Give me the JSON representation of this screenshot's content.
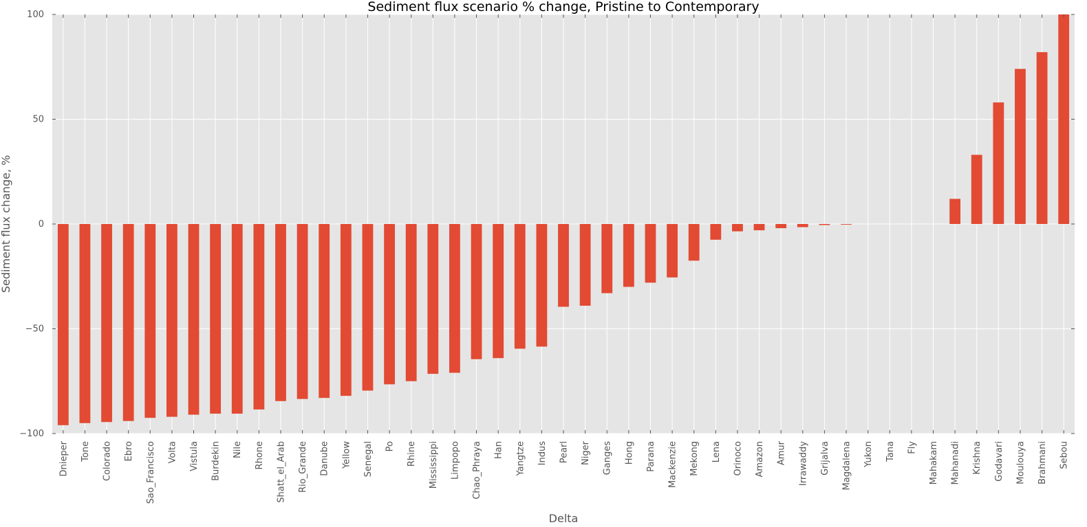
{
  "chart_data": {
    "type": "bar",
    "title": "Sediment flux scenario % change, Pristine to Contemporary",
    "xlabel": "Delta",
    "ylabel": "Sediment flux change, %",
    "ylim": [
      -100,
      100
    ],
    "yticks": [
      -100,
      -50,
      0,
      50,
      100
    ],
    "ytick_labels": [
      "−100",
      "−50",
      "0",
      "50",
      "100"
    ],
    "grid": true,
    "colors": {
      "bar": "#e24a33",
      "background": "#e5e5e5",
      "grid": "#ffffff"
    },
    "categories": [
      "Dnieper",
      "Tone",
      "Colorado",
      "Ebro",
      "Sao_Francisco",
      "Volta",
      "Vistula",
      "Burdekin",
      "Nile",
      "Rhone",
      "Shatt_el_Arab",
      "Rio_Grande",
      "Danube",
      "Yellow",
      "Senegal",
      "Po",
      "Rhine",
      "Mississippi",
      "Limpopo",
      "Chao_Phraya",
      "Han",
      "Yangtze",
      "Indus",
      "Pearl",
      "Niger",
      "Ganges",
      "Hong",
      "Parana",
      "Mackenzie",
      "Mekong",
      "Lena",
      "Orinoco",
      "Amazon",
      "Amur",
      "Irrawaddy",
      "Grijalva",
      "Magdalena",
      "Yukon",
      "Tana",
      "Fly",
      "Mahakam",
      "Mahanadi",
      "Krishna",
      "Godavari",
      "Moulouya",
      "Brahmani",
      "Sebou"
    ],
    "values": [
      -96,
      -95,
      -94.5,
      -94,
      -92.5,
      -92,
      -91,
      -90.5,
      -90.5,
      -88.5,
      -84.5,
      -83.5,
      -83,
      -82,
      -79.5,
      -76.5,
      -75,
      -71.5,
      -71,
      -64.5,
      -64,
      -59.5,
      -58.5,
      -39.5,
      -39,
      -33,
      -30,
      -28,
      -25.5,
      -17.5,
      -7.5,
      -3.5,
      -3,
      -2,
      -1.5,
      -0.5,
      -0.3,
      0,
      0,
      0,
      0,
      12,
      33,
      58,
      74,
      82,
      100
    ]
  }
}
